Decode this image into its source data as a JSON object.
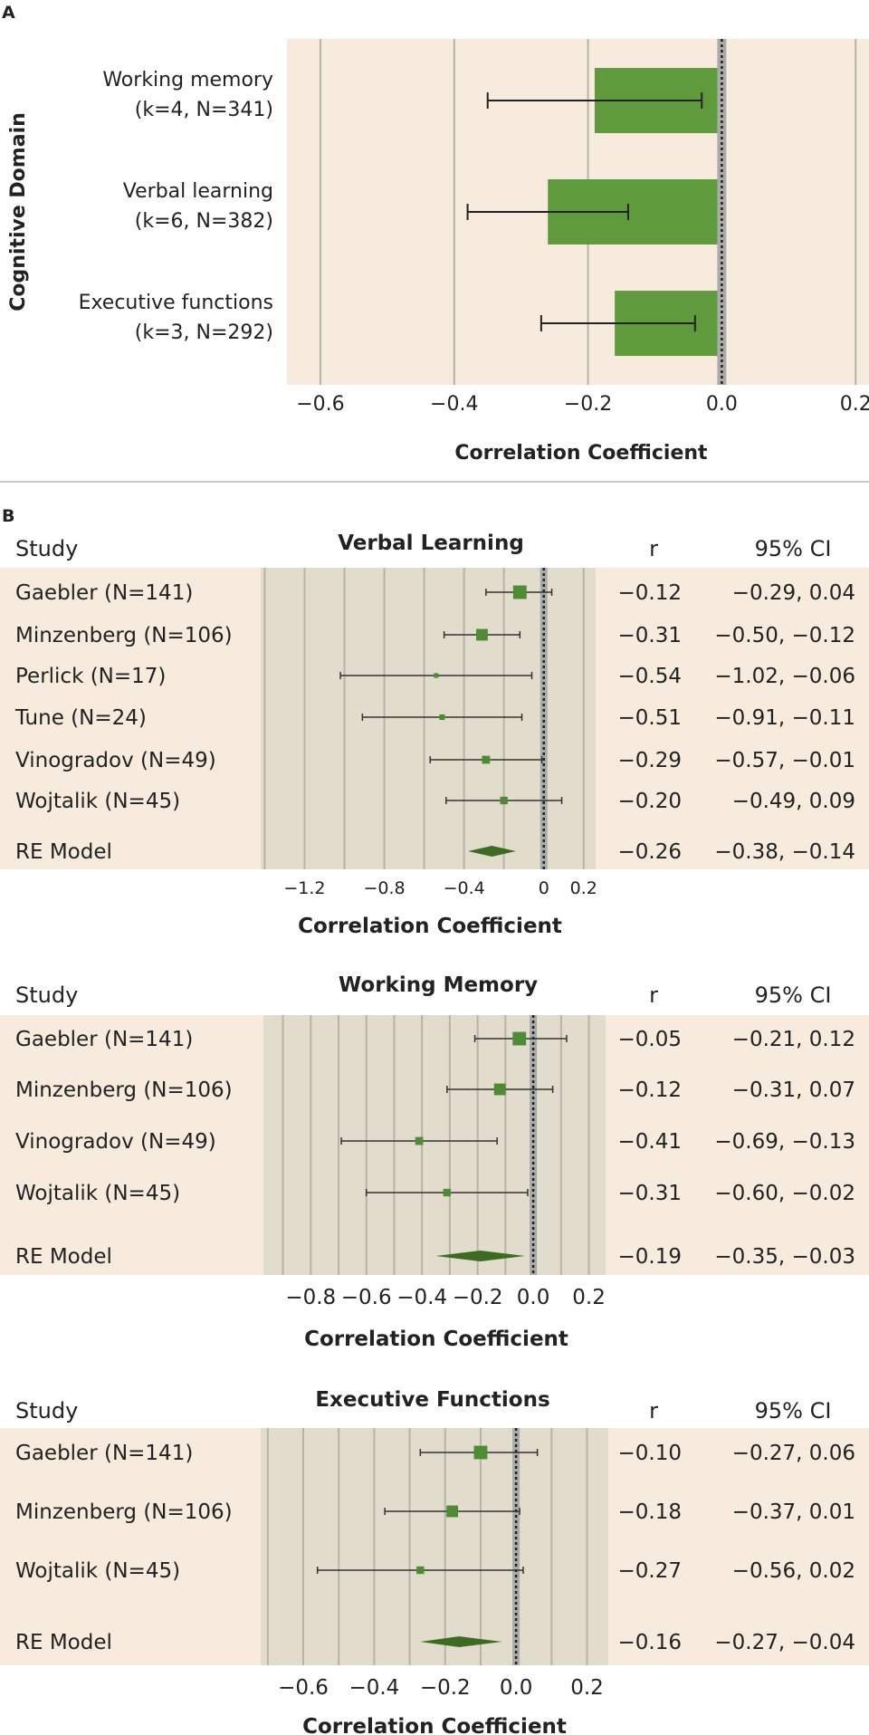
{
  "colors": {
    "panel_bg": "#f6ebdc",
    "plot_bg": "#e1dccb",
    "grid": "#b7b3a8",
    "bar_fill": "#5f9a3c",
    "marker": "#4f8a35",
    "diamond": "#3f6a22",
    "zero_line": "#aaaaaa",
    "text": "#222222",
    "divider": "#c9c9c9"
  },
  "chart_data": [
    {
      "panel": "A",
      "type": "bar",
      "orientation": "horizontal",
      "title": "",
      "xlabel": "Correlation Coefficient",
      "ylabel": "Cognitive Domain",
      "xlim": [
        -0.65,
        0.22
      ],
      "xticks": [
        "−0.6",
        "−0.4",
        "−0.2",
        "0.0",
        "0.2"
      ],
      "xtick_values": [
        -0.6,
        -0.4,
        -0.2,
        0.0,
        0.2
      ],
      "grid": true,
      "categories": [
        {
          "line1": "Working memory",
          "line2": "(k=4, N=341)"
        },
        {
          "line1": "Verbal learning",
          "line2": "(k=6, N=382)"
        },
        {
          "line1": "Executive functions",
          "line2": "(k=3, N=292)"
        }
      ],
      "values": [
        -0.19,
        -0.26,
        -0.16
      ],
      "ci_lower": [
        -0.35,
        -0.38,
        -0.27
      ],
      "ci_upper": [
        -0.03,
        -0.14,
        -0.04
      ]
    },
    {
      "panel": "B",
      "type": "forest",
      "title": "Verbal Learning",
      "col_study": "Study",
      "col_r": "r",
      "col_ci": "95% CI",
      "xlabel": "Correlation Coefficient",
      "xlim": [
        -1.42,
        0.26
      ],
      "xticks": [
        "−1.2",
        "−0.8",
        "−0.4",
        "0",
        "0.2"
      ],
      "xtick_values": [
        -1.2,
        -0.8,
        -0.4,
        0.0,
        0.2
      ],
      "studies": [
        {
          "label": "Gaebler (N=141)",
          "r": -0.12,
          "r_text": "−0.12",
          "lo": -0.29,
          "hi": 0.04,
          "ci_text": "−0.29,   0.04",
          "n": 141
        },
        {
          "label": "Minzenberg (N=106)",
          "r": -0.31,
          "r_text": "−0.31",
          "lo": -0.5,
          "hi": -0.12,
          "ci_text": "−0.50, −0.12",
          "n": 106
        },
        {
          "label": "Perlick (N=17)",
          "r": -0.54,
          "r_text": "−0.54",
          "lo": -1.02,
          "hi": -0.06,
          "ci_text": "−1.02, −0.06",
          "n": 17
        },
        {
          "label": "Tune (N=24)",
          "r": -0.51,
          "r_text": "−0.51",
          "lo": -0.91,
          "hi": -0.11,
          "ci_text": "−0.91, −0.11",
          "n": 24
        },
        {
          "label": "Vinogradov (N=49)",
          "r": -0.29,
          "r_text": "−0.29",
          "lo": -0.57,
          "hi": -0.01,
          "ci_text": "−0.57, −0.01",
          "n": 49
        },
        {
          "label": "Wojtalik (N=45)",
          "r": -0.2,
          "r_text": "−0.20",
          "lo": -0.49,
          "hi": 0.09,
          "ci_text": "−0.49,   0.09",
          "n": 45
        }
      ],
      "model": {
        "label": "RE Model",
        "r": -0.26,
        "r_text": "−0.26",
        "lo": -0.38,
        "hi": -0.14,
        "ci_text": "−0.38, −0.14"
      }
    },
    {
      "panel": "B",
      "type": "forest",
      "title": "Working Memory",
      "col_study": "Study",
      "col_r": "r",
      "col_ci": "95% CI",
      "xlabel": "Correlation Coefficient",
      "xlim": [
        -0.97,
        0.26
      ],
      "xticks": [
        "−0.8",
        "−0.6",
        "−0.4",
        "−0.2",
        "0.0",
        "0.2"
      ],
      "xtick_values": [
        -0.8,
        -0.6,
        -0.4,
        -0.2,
        0.0,
        0.2
      ],
      "studies": [
        {
          "label": "Gaebler (N=141)",
          "r": -0.05,
          "r_text": "−0.05",
          "lo": -0.21,
          "hi": 0.12,
          "ci_text": "−0.21,   0.12",
          "n": 141
        },
        {
          "label": "Minzenberg (N=106)",
          "r": -0.12,
          "r_text": "−0.12",
          "lo": -0.31,
          "hi": 0.07,
          "ci_text": "−0.31,   0.07",
          "n": 106
        },
        {
          "label": "Vinogradov (N=49)",
          "r": -0.41,
          "r_text": "−0.41",
          "lo": -0.69,
          "hi": -0.13,
          "ci_text": "−0.69, −0.13",
          "n": 49
        },
        {
          "label": "Wojtalik (N=45)",
          "r": -0.31,
          "r_text": "−0.31",
          "lo": -0.6,
          "hi": -0.02,
          "ci_text": "−0.60, −0.02",
          "n": 45
        }
      ],
      "model": {
        "label": "RE Model",
        "r": -0.19,
        "r_text": "−0.19",
        "lo": -0.35,
        "hi": -0.03,
        "ci_text": "−0.35, −0.03"
      }
    },
    {
      "panel": "B",
      "type": "forest",
      "title": "Executive Functions",
      "col_study": "Study",
      "col_r": "r",
      "col_ci": "95% CI",
      "xlabel": "Correlation Coefficient",
      "xlim": [
        -0.72,
        0.26
      ],
      "xticks": [
        "−0.6",
        "−0.4",
        "−0.2",
        "0.0",
        "0.2"
      ],
      "xtick_values": [
        -0.6,
        -0.4,
        -0.2,
        0.0,
        0.2
      ],
      "studies": [
        {
          "label": "Gaebler (N=141)",
          "r": -0.1,
          "r_text": "−0.10",
          "lo": -0.27,
          "hi": 0.06,
          "ci_text": "−0.27,   0.06",
          "n": 141
        },
        {
          "label": "Minzenberg (N=106)",
          "r": -0.18,
          "r_text": "−0.18",
          "lo": -0.37,
          "hi": 0.01,
          "ci_text": "−0.37,   0.01",
          "n": 106
        },
        {
          "label": "Wojtalik (N=45)",
          "r": -0.27,
          "r_text": "−0.27",
          "lo": -0.56,
          "hi": 0.02,
          "ci_text": "−0.56,   0.02",
          "n": 45
        }
      ],
      "model": {
        "label": "RE Model",
        "r": -0.16,
        "r_text": "−0.16",
        "lo": -0.27,
        "hi": -0.04,
        "ci_text": "−0.27, −0.04"
      }
    }
  ]
}
